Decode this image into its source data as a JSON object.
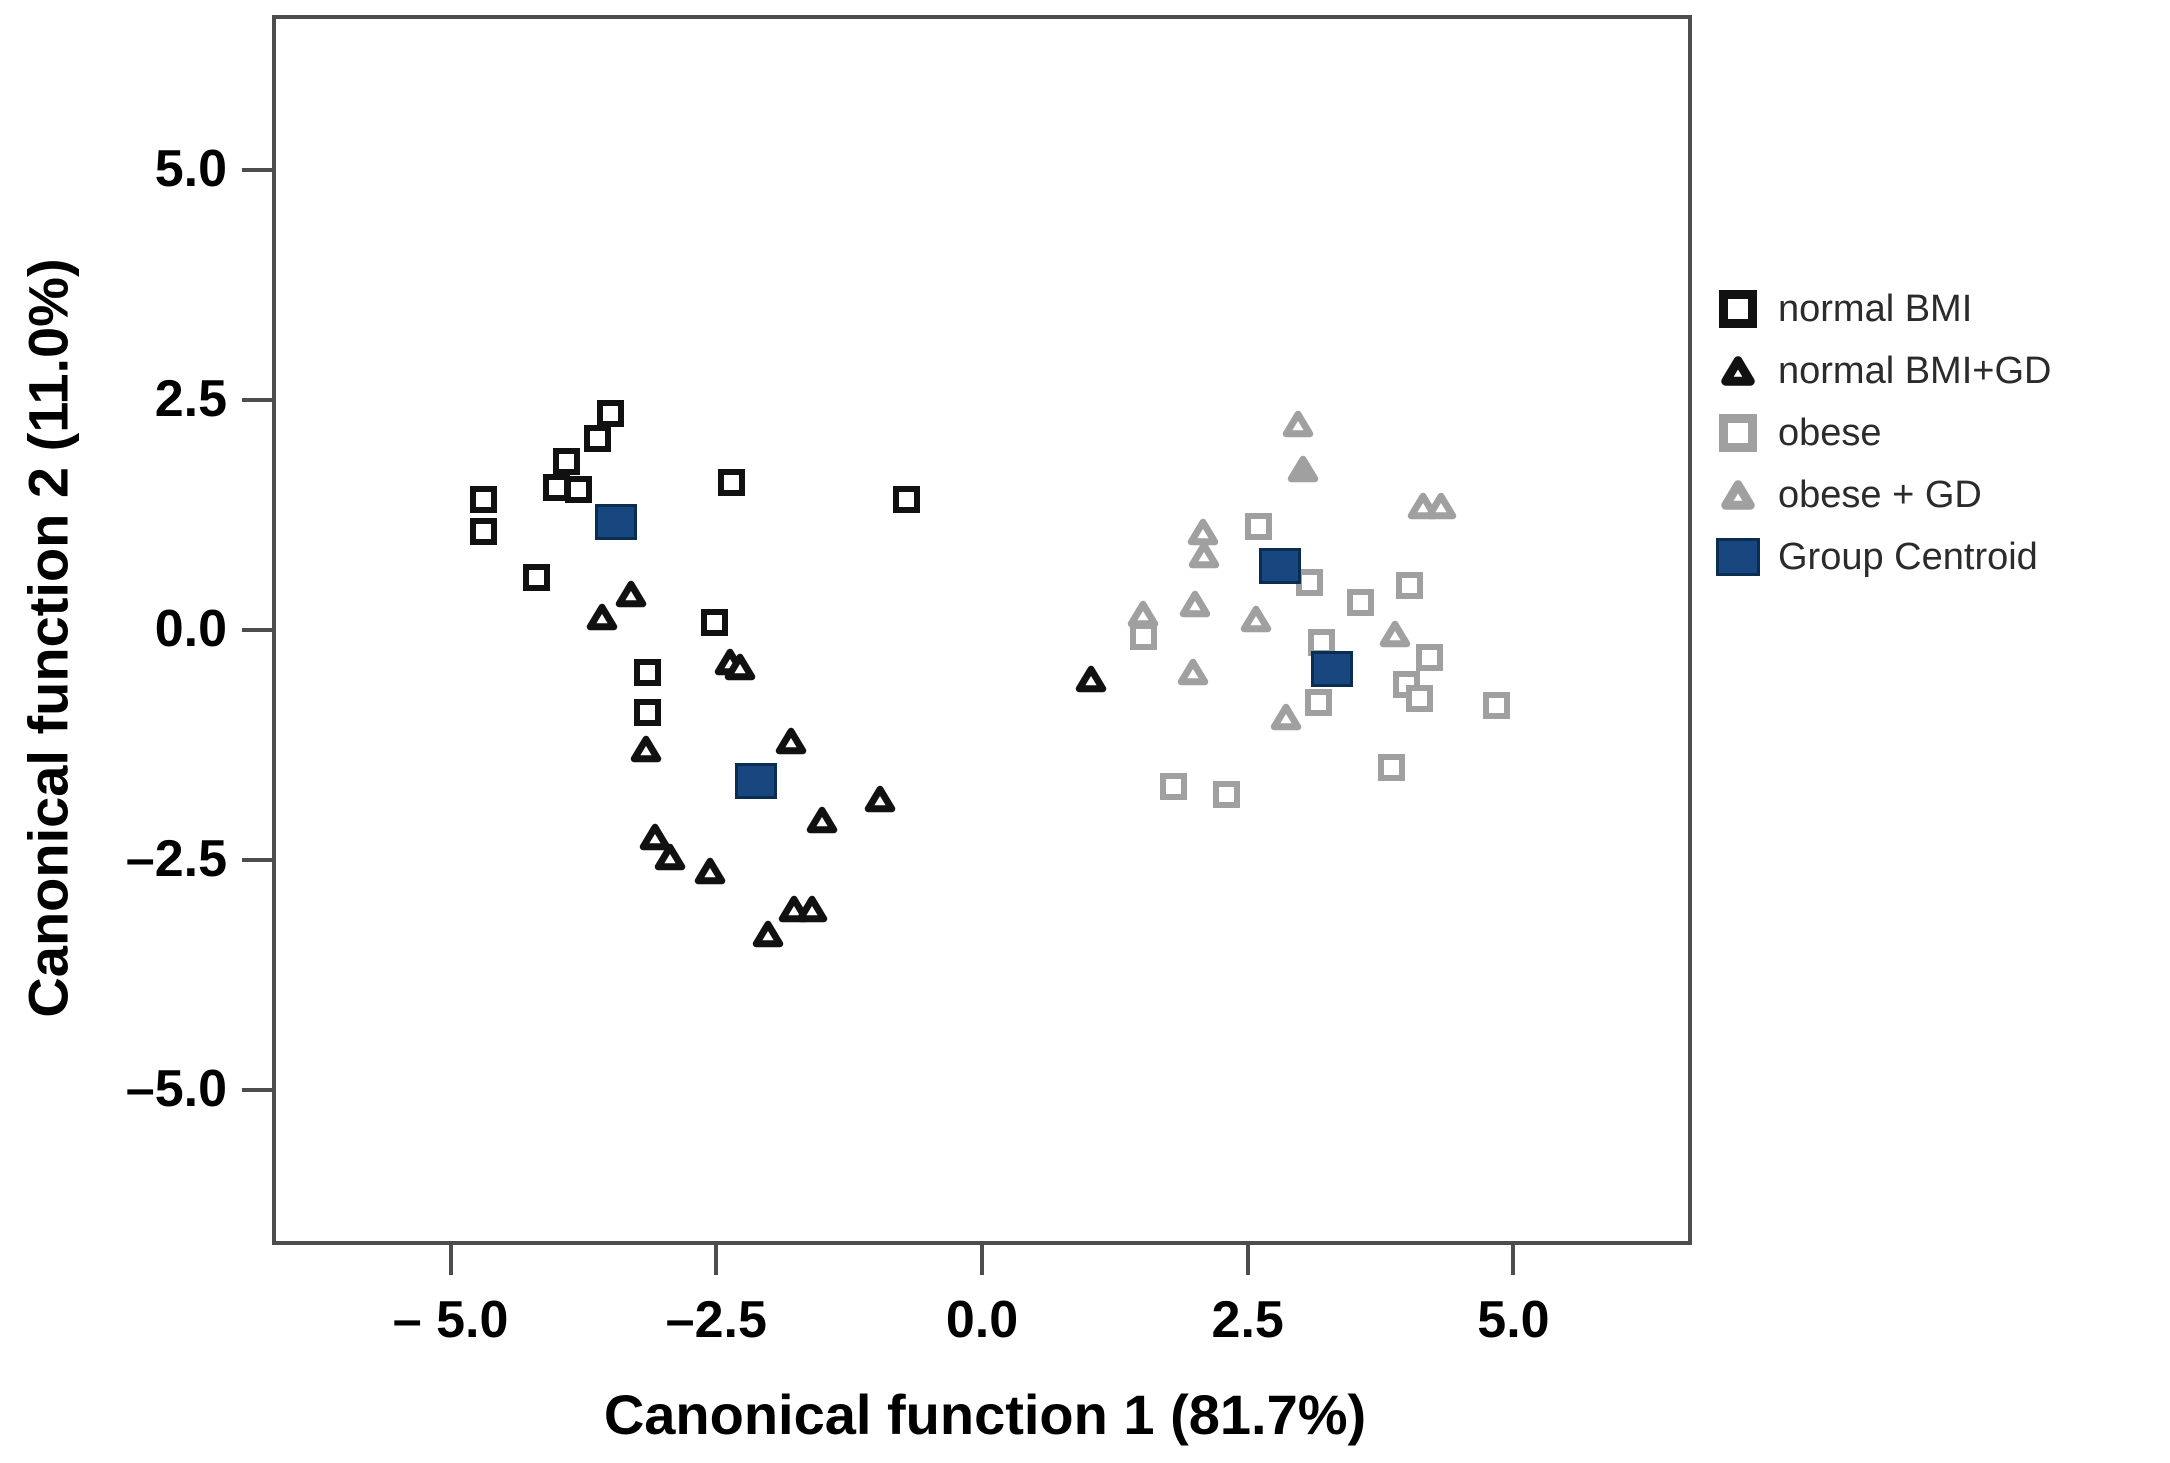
{
  "figure": {
    "x_axis_title": "Canonical function 1 (81.7%)",
    "y_axis_title": "Canonical function 2 (11.0%)"
  },
  "colors": {
    "black_marker": "#111111",
    "gray_marker": "#a0a0a0",
    "centroid_fill": "#17477e",
    "centroid_border": "#0a2d52",
    "frame": "#4d4d4d",
    "text": "#000000"
  },
  "chart_data": {
    "type": "scatter",
    "title": "",
    "xlabel": "Canonical function 1 (81.7%)",
    "ylabel": "Canonical function 2 (11.0%)",
    "xlim": [
      -6.68,
      6.68
    ],
    "ylim": [
      -6.68,
      6.68
    ],
    "grid": false,
    "legend_position": "right-outside",
    "x_ticks": {
      "values": [
        -5.0,
        -2.5,
        0.0,
        2.5,
        5.0
      ],
      "labels": [
        "– 5.0",
        "–2.5",
        "0.0",
        "2.5",
        "5.0"
      ]
    },
    "y_ticks": {
      "values": [
        5.0,
        2.5,
        0.0,
        -2.5,
        -5.0
      ],
      "labels": [
        "5.0",
        "2.5",
        "0.0",
        "–2.5",
        "–5.0"
      ]
    },
    "series": [
      {
        "name": "normal BMI",
        "marker": "square-open",
        "color": "#111111",
        "points": [
          [
            -3.54,
            2.4
          ],
          [
            -3.66,
            2.13
          ],
          [
            -3.95,
            1.88
          ],
          [
            -4.05,
            1.6
          ],
          [
            -3.84,
            1.58
          ],
          [
            -4.73,
            1.47
          ],
          [
            -4.73,
            1.12
          ],
          [
            -2.4,
            1.65
          ],
          [
            -0.75,
            1.47
          ],
          [
            -4.23,
            0.62
          ],
          [
            -2.56,
            0.13
          ],
          [
            -3.19,
            -0.41
          ],
          [
            -3.19,
            -0.85
          ]
        ]
      },
      {
        "name": "normal BMI+GD",
        "marker": "triangle",
        "color": "#111111",
        "points": [
          [
            -3.34,
            0.43
          ],
          [
            -3.61,
            0.18
          ],
          [
            -2.41,
            -0.3
          ],
          [
            -2.31,
            -0.36
          ],
          [
            -3.2,
            -1.25
          ],
          [
            -1.83,
            -1.16
          ],
          [
            -1.54,
            -2.02
          ],
          [
            -1.0,
            -1.79
          ],
          [
            -3.11,
            -2.21
          ],
          [
            -2.97,
            -2.42
          ],
          [
            -2.6,
            -2.57
          ],
          [
            -1.81,
            -2.99
          ],
          [
            -1.64,
            -2.99
          ],
          [
            -2.05,
            -3.26
          ],
          [
            0.99,
            -0.49
          ]
        ]
      },
      {
        "name": "obese",
        "marker": "square-open",
        "color": "#a0a0a0",
        "points": [
          [
            2.56,
            1.17
          ],
          [
            3.04,
            0.57
          ],
          [
            3.52,
            0.35
          ],
          [
            3.98,
            0.53
          ],
          [
            1.48,
            -0.02
          ],
          [
            3.15,
            -0.09
          ],
          [
            4.17,
            -0.25
          ],
          [
            3.95,
            -0.54
          ],
          [
            4.07,
            -0.7
          ],
          [
            4.8,
            -0.77
          ],
          [
            3.12,
            -0.74
          ],
          [
            3.81,
            -1.45
          ],
          [
            1.76,
            -1.65
          ],
          [
            2.26,
            -1.74
          ]
        ]
      },
      {
        "name": "obese + GD",
        "marker": "triangle",
        "color": "#a0a0a0",
        "solid_point_indices": [
          1
        ],
        "points": [
          [
            2.94,
            2.28
          ],
          [
            2.98,
            1.79
          ],
          [
            4.11,
            1.39
          ],
          [
            4.28,
            1.39
          ],
          [
            2.04,
            1.11
          ],
          [
            2.05,
            0.86
          ],
          [
            1.97,
            0.33
          ],
          [
            2.54,
            0.16
          ],
          [
            1.48,
            0.22
          ],
          [
            3.85,
            0.0
          ],
          [
            1.95,
            -0.41
          ],
          [
            2.82,
            -0.9
          ]
        ]
      },
      {
        "name": "Group Centroid",
        "marker": "square-filled",
        "color": "#17477e",
        "points": [
          [
            -3.48,
            1.22
          ],
          [
            -2.16,
            -1.6
          ],
          [
            2.77,
            0.74
          ],
          [
            3.26,
            -0.38
          ]
        ]
      }
    ]
  }
}
